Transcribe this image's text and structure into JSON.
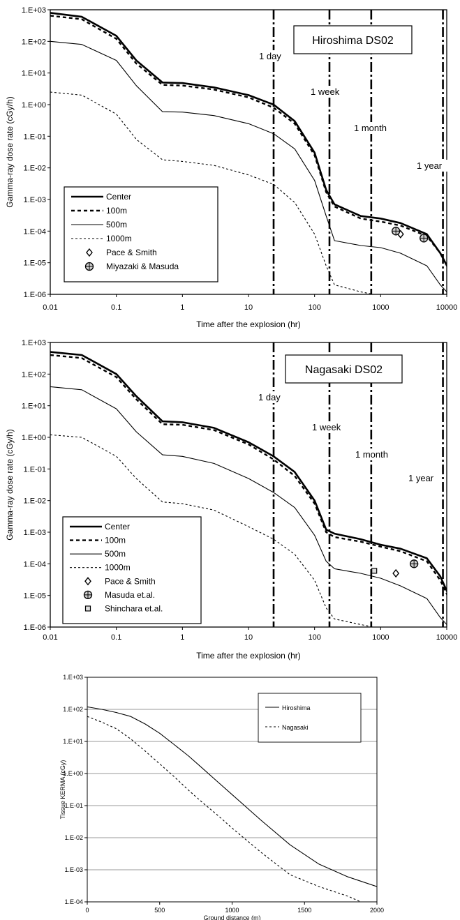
{
  "chart_data": [
    {
      "type": "line",
      "title": "Hiroshima DS02",
      "xlabel": "Time after the explosion (hr)",
      "ylabel": "Gamma-ray dose rate (cGy/h)",
      "xscale": "log",
      "yscale": "log",
      "xlim": [
        0.01,
        10000
      ],
      "ylim": [
        1e-06,
        1000
      ],
      "xtick_labels": [
        "0.01",
        "0.1",
        "1",
        "10",
        "100",
        "1000",
        "10000"
      ],
      "ytick_labels": [
        "1.E-06",
        "1.E-05",
        "1.E-04",
        "1.E-03",
        "1.E-02",
        "1.E-01",
        "1.E+00",
        "1.E+01",
        "1.E+02",
        "1.E+03"
      ],
      "grid": false,
      "legend_position": "lower-left",
      "event_lines": [
        {
          "label": "1 day",
          "x": 24
        },
        {
          "label": "1 week",
          "x": 168
        },
        {
          "label": "1 month",
          "x": 720
        },
        {
          "label": "1 year",
          "x": 8760
        }
      ],
      "series": [
        {
          "name": "Center",
          "style": "thick-solid",
          "x": [
            0.01,
            0.03,
            0.1,
            0.2,
            0.5,
            1,
            3,
            10,
            24,
            50,
            100,
            150,
            200,
            500,
            1000,
            2000,
            5000,
            8000,
            12000
          ],
          "y": [
            800,
            600,
            150,
            25,
            5,
            4.8,
            3.5,
            2,
            1,
            0.3,
            0.03,
            0.002,
            0.0007,
            0.0003,
            0.00025,
            0.00018,
            8e-05,
            2e-05,
            4e-06
          ]
        },
        {
          "name": "100m",
          "style": "thick-dash",
          "x": [
            0.01,
            0.03,
            0.1,
            0.2,
            0.5,
            1,
            3,
            10,
            24,
            50,
            100,
            150,
            200,
            500,
            1000,
            2000,
            5000,
            8000,
            12000
          ],
          "y": [
            650,
            500,
            120,
            20,
            4.2,
            4,
            3,
            1.7,
            0.8,
            0.25,
            0.025,
            0.0017,
            0.0006,
            0.00025,
            0.0002,
            0.00015,
            7e-05,
            2e-05,
            4e-06
          ]
        },
        {
          "name": "500m",
          "style": "thin-solid",
          "x": [
            0.01,
            0.03,
            0.1,
            0.2,
            0.5,
            1,
            3,
            10,
            24,
            50,
            100,
            150,
            200,
            500,
            1000,
            2000,
            5000,
            8000,
            10000
          ],
          "y": [
            100,
            80,
            25,
            4,
            0.6,
            0.58,
            0.45,
            0.25,
            0.12,
            0.04,
            0.004,
            0.0003,
            5e-05,
            3.5e-05,
            3e-05,
            2e-05,
            8e-06,
            2e-06,
            1.2e-06
          ]
        },
        {
          "name": "1000m",
          "style": "thin-dash",
          "x": [
            0.01,
            0.03,
            0.1,
            0.2,
            0.5,
            1,
            3,
            10,
            24,
            50,
            100,
            150,
            200,
            500,
            1000
          ],
          "y": [
            2.5,
            2,
            0.5,
            0.08,
            0.018,
            0.016,
            0.012,
            0.006,
            0.003,
            0.0008,
            8e-05,
            8e-06,
            2e-06,
            1.2e-06,
            9e-07
          ]
        }
      ],
      "markers": [
        {
          "name": "Pace & Smith",
          "symbol": "diamond",
          "x": [
            2000
          ],
          "y": [
            8e-05
          ]
        },
        {
          "name": "Miyazaki & Masuda",
          "symbol": "circle-cross",
          "x": [
            1700,
            4500
          ],
          "y": [
            0.0001,
            6e-05
          ]
        }
      ]
    },
    {
      "type": "line",
      "title": "Nagasaki DS02",
      "xlabel": "Time after the explosion (hr)",
      "ylabel": "Gamma-ray dose rate (cGy/h)",
      "xscale": "log",
      "yscale": "log",
      "xlim": [
        0.01,
        10000
      ],
      "ylim": [
        1e-06,
        1000
      ],
      "xtick_labels": [
        "0.01",
        "0.1",
        "1",
        "10",
        "100",
        "1000",
        "10000"
      ],
      "ytick_labels": [
        "1.E-06",
        "1.E-05",
        "1.E-04",
        "1.E-03",
        "1.E-02",
        "1.E-01",
        "1.E+00",
        "1.E+01",
        "1.E+02",
        "1.E+03"
      ],
      "grid": false,
      "legend_position": "lower-left",
      "event_lines": [
        {
          "label": "1 day",
          "x": 24
        },
        {
          "label": "1 week",
          "x": 168
        },
        {
          "label": "1 month",
          "x": 720
        },
        {
          "label": "1 year",
          "x": 8760
        }
      ],
      "series": [
        {
          "name": "Center",
          "style": "thick-solid",
          "x": [
            0.01,
            0.03,
            0.1,
            0.2,
            0.5,
            1,
            3,
            10,
            24,
            50,
            100,
            150,
            200,
            500,
            1000,
            2000,
            5000,
            8000,
            12000
          ],
          "y": [
            500,
            400,
            100,
            20,
            3.2,
            3,
            2,
            0.7,
            0.25,
            0.08,
            0.01,
            0.0012,
            0.0009,
            0.0006,
            0.0004,
            0.0003,
            0.00015,
            4e-05,
            6e-06
          ]
        },
        {
          "name": "100m",
          "style": "thick-dash",
          "x": [
            0.01,
            0.03,
            0.1,
            0.2,
            0.5,
            1,
            3,
            10,
            24,
            50,
            100,
            150,
            200,
            500,
            1000,
            2000,
            5000,
            8000,
            12000
          ],
          "y": [
            400,
            320,
            80,
            16,
            2.6,
            2.5,
            1.7,
            0.6,
            0.2,
            0.06,
            0.008,
            0.001,
            0.0007,
            0.0005,
            0.00035,
            0.00025,
            0.00012,
            3e-05,
            5e-06
          ]
        },
        {
          "name": "500m",
          "style": "thin-solid",
          "x": [
            0.01,
            0.03,
            0.1,
            0.2,
            0.5,
            1,
            3,
            10,
            24,
            50,
            100,
            150,
            200,
            500,
            1000,
            2000,
            5000,
            8000,
            10000
          ],
          "y": [
            40,
            32,
            8,
            1.5,
            0.28,
            0.25,
            0.15,
            0.05,
            0.018,
            0.006,
            0.0008,
            0.00012,
            7e-05,
            5e-05,
            3.5e-05,
            2e-05,
            8e-06,
            2e-06,
            1.2e-06
          ]
        },
        {
          "name": "1000m",
          "style": "thin-dash",
          "x": [
            0.01,
            0.03,
            0.1,
            0.2,
            0.5,
            1,
            3,
            10,
            24,
            50,
            100,
            150,
            200,
            500,
            1000
          ],
          "y": [
            1.2,
            1,
            0.25,
            0.05,
            0.009,
            0.008,
            0.005,
            0.0015,
            0.0006,
            0.0002,
            3e-05,
            4e-06,
            1.8e-06,
            1.2e-06,
            9e-07
          ]
        }
      ],
      "markers": [
        {
          "name": "Pace & Smith",
          "symbol": "diamond",
          "x": [
            1700
          ],
          "y": [
            5e-05
          ]
        },
        {
          "name": "Masuda et.al.",
          "symbol": "circle-cross",
          "x": [
            3200
          ],
          "y": [
            0.0001
          ]
        },
        {
          "name": "Shinchara et.al.",
          "symbol": "square",
          "x": [
            800
          ],
          "y": [
            6e-05
          ]
        }
      ]
    },
    {
      "type": "line",
      "title": "",
      "xlabel": "Ground distance (m)",
      "ylabel": "Tissue KERMA (cGy)",
      "xscale": "linear",
      "yscale": "log",
      "xlim": [
        0,
        2000
      ],
      "ylim": [
        0.0001,
        1000
      ],
      "xtick_labels": [
        "0",
        "500",
        "1000",
        "1500",
        "2000"
      ],
      "ytick_labels": [
        "1.E-04",
        "1.E-03",
        "1.E-02",
        "1.E-01",
        "1.E+00",
        "1.E+01",
        "1.E+02",
        "1.E+03"
      ],
      "grid": true,
      "legend_position": "top-right",
      "series": [
        {
          "name": "Hiroshima",
          "style": "thin-solid",
          "x": [
            0,
            100,
            200,
            300,
            400,
            500,
            600,
            700,
            800,
            900,
            1000,
            1200,
            1400,
            1600,
            1800,
            2000
          ],
          "y": [
            120,
            100,
            80,
            60,
            35,
            18,
            8,
            3.5,
            1.4,
            0.55,
            0.22,
            0.035,
            0.006,
            0.0015,
            0.0006,
            0.0003
          ]
        },
        {
          "name": "Nagasaki",
          "style": "thin-dash",
          "x": [
            0,
            100,
            200,
            300,
            400,
            500,
            600,
            700,
            800,
            900,
            1000,
            1200,
            1400,
            1600,
            1800,
            2000
          ],
          "y": [
            60,
            40,
            25,
            12,
            5,
            2,
            0.8,
            0.3,
            0.12,
            0.05,
            0.02,
            0.0035,
            0.0007,
            0.0003,
            0.00015,
            6e-05
          ]
        }
      ]
    }
  ]
}
